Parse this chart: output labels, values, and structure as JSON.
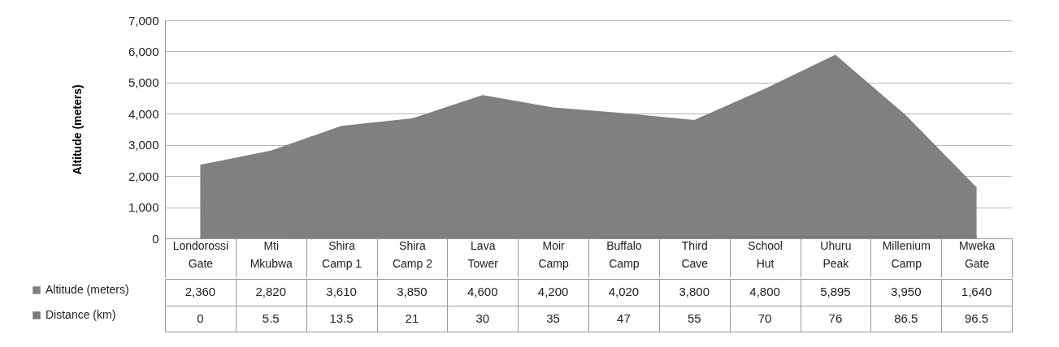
{
  "chart_data": {
    "type": "area",
    "ylabel": "Altitude (meters)",
    "categories": [
      "Londorossi Gate",
      "Mti Mkubwa",
      "Shira Camp 1",
      "Shira Camp 2",
      "Lava Tower",
      "Moir Camp",
      "Buffalo Camp",
      "Third Cave",
      "School Hut",
      "Uhuru Peak",
      "Millenium Camp",
      "Mweka Gate"
    ],
    "series": [
      {
        "name": "Altitude (meters)",
        "color": "#808080",
        "values": [
          2360,
          2820,
          3610,
          3850,
          4600,
          4200,
          4020,
          3800,
          4800,
          5895,
          3950,
          1640
        ],
        "value_labels": [
          "2,360",
          "2,820",
          "3,610",
          "3,850",
          "4,600",
          "4,200",
          "4,020",
          "3,800",
          "4,800",
          "5,895",
          "3,950",
          "1,640"
        ]
      },
      {
        "name": "Distance (km)",
        "color": "#7a7a7a",
        "values": [
          0,
          5.5,
          13.5,
          21,
          30,
          35,
          47,
          55,
          70,
          76,
          86.5,
          96.5
        ],
        "value_labels": [
          "0",
          "5.5",
          "13.5",
          "21",
          "30",
          "35",
          "47",
          "55",
          "70",
          "76",
          "86.5",
          "96.5"
        ]
      }
    ],
    "ylim": [
      0,
      7000
    ],
    "yticks": [
      0,
      {
        "value": 1000,
        "label": "1,000"
      },
      {
        "value": 2000,
        "label": "2,000"
      },
      {
        "value": 3000,
        "label": "3,000"
      },
      {
        "value": 4000,
        "label": "4,000"
      },
      {
        "value": 5000,
        "label": "5,000"
      },
      {
        "value": 6000,
        "label": "6,000"
      },
      {
        "value": 7000,
        "label": "7,000"
      }
    ],
    "grid": "y",
    "legend": "bottom left"
  }
}
